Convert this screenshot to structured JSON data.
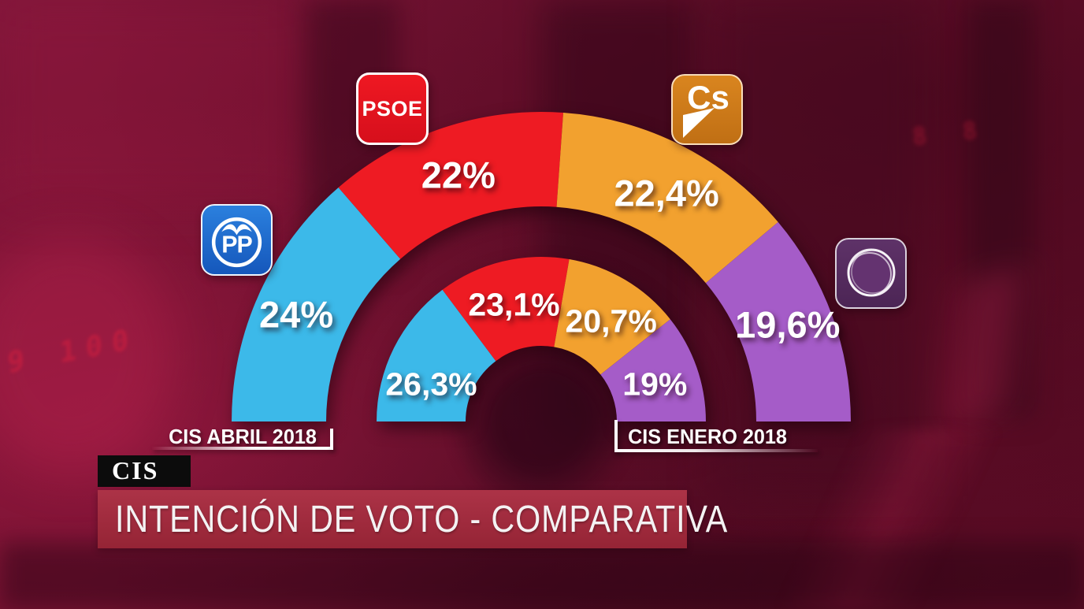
{
  "chart_data": {
    "type": "pie",
    "variant": "half-donut-comparison",
    "title": "INTENCIÓN DE VOTO - COMPARATIVA",
    "source": "CIS",
    "total_angle_deg": 180,
    "series": [
      {
        "name": "CIS ABRIL 2018",
        "ring": "outer",
        "segments": [
          {
            "party": "PP",
            "value": 24,
            "label": "24%",
            "color": "#3cb9e9"
          },
          {
            "party": "PSOE",
            "value": 22,
            "label": "22%",
            "color": "#ee1b23"
          },
          {
            "party": "Cs",
            "value": 22.4,
            "label": "22,4%",
            "color": "#f2a12f"
          },
          {
            "party": "Podemos",
            "value": 19.6,
            "label": "19,6%",
            "color": "#a55cc8"
          }
        ]
      },
      {
        "name": "CIS ENERO 2018",
        "ring": "inner",
        "segments": [
          {
            "party": "PP",
            "value": 26.3,
            "label": "26,3%",
            "color": "#3cb9e9"
          },
          {
            "party": "PSOE",
            "value": 23.1,
            "label": "23,1%",
            "color": "#ee1b23"
          },
          {
            "party": "Cs",
            "value": 20.7,
            "label": "20,7%",
            "color": "#f2a12f"
          },
          {
            "party": "Podemos",
            "value": 19,
            "label": "19%",
            "color": "#a55cc8"
          }
        ]
      }
    ],
    "layout": {
      "center": [
        687,
        535
      ],
      "rings": {
        "outer": [
          273,
          393
        ],
        "inner": [
          96,
          209
        ]
      },
      "label_radius": {
        "outer": 333,
        "inner": 156
      }
    }
  },
  "logos": {
    "psoe": {
      "party": "PSOE",
      "text": "PSOE",
      "color": "#e0131f"
    },
    "pp": {
      "party": "PP",
      "text": "PP",
      "color": "#1e6bd0"
    },
    "cs": {
      "party": "Ciudadanos",
      "text": "Cs",
      "color": "#cc7a1c"
    },
    "podemos": {
      "party": "Podemos",
      "text": "",
      "color": "#5c3065"
    }
  },
  "captions": {
    "left": "CIS ABRIL 2018",
    "right": "CIS ENERO 2018"
  },
  "footer": {
    "source_label": "CIS",
    "title": "INTENCIÓN DE VOTO - COMPARATIVA"
  },
  "background": {
    "led_digits_left": "9 100",
    "led_digits_right": "8 8"
  }
}
